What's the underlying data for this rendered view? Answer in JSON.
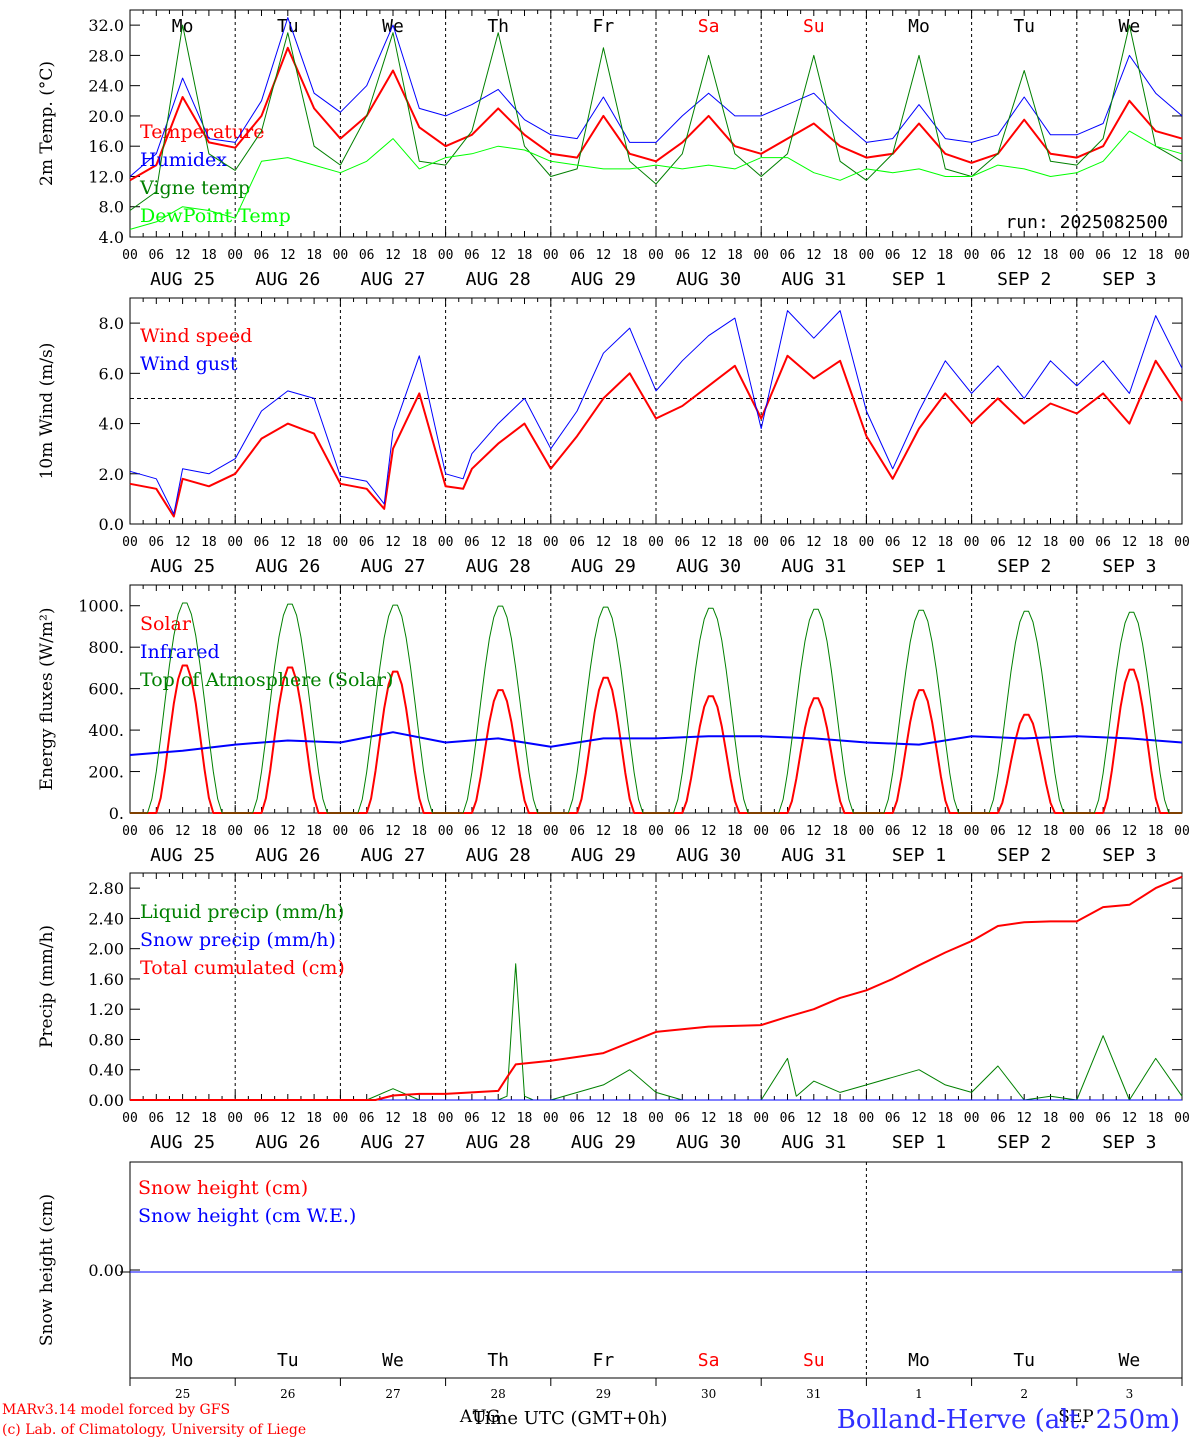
{
  "chart_data": [
    {
      "type": "line",
      "ylabel": "2m Temp. (°C)",
      "ylim": [
        4,
        34
      ],
      "yticks": [
        "4.0",
        "8.0",
        "12.0",
        "16.0",
        "20.0",
        "24.0",
        "28.0",
        "32.0"
      ],
      "weekdays": [
        "Mo",
        "Tu",
        "We",
        "Th",
        "Fr",
        "Sa",
        "Su",
        "Mo",
        "Tu",
        "We"
      ],
      "weekday_colors": [
        "#000000",
        "#000000",
        "#000000",
        "#000000",
        "#000000",
        "#ff0000",
        "#ff0000",
        "#000000",
        "#000000",
        "#000000"
      ],
      "hour_ticks": [
        "00",
        "06",
        "12",
        "18"
      ],
      "day_labels": [
        "AUG 25",
        "AUG 26",
        "AUG 27",
        "AUG 28",
        "AUG 29",
        "AUG 30",
        "AUG 31",
        "SEP  1",
        "SEP  2",
        "SEP  3"
      ],
      "final_tick": "00",
      "annotation": "run: 2025082500",
      "series": [
        {
          "name": "Temperature",
          "color": "#ff0000",
          "width": 2,
          "x": [
            0,
            6,
            12,
            18,
            24,
            30,
            36,
            42,
            48,
            54,
            60,
            66,
            72,
            78,
            84,
            90,
            96,
            102,
            108,
            114,
            120,
            126,
            132,
            138,
            144,
            150,
            156,
            162,
            168,
            174,
            180,
            186,
            192,
            198,
            204,
            210,
            216,
            222,
            228,
            234,
            240
          ],
          "y": [
            11.5,
            13.5,
            22.5,
            16.5,
            15.8,
            20,
            29,
            21,
            17,
            20,
            26,
            18.5,
            16,
            17.5,
            21,
            17.5,
            15,
            14.5,
            20,
            15,
            14,
            16.5,
            20,
            16,
            15,
            17,
            19,
            16,
            14.5,
            15,
            19,
            15,
            13.8,
            15,
            19.5,
            15,
            14.5,
            16,
            22,
            18,
            17
          ]
        },
        {
          "name": "Humidex",
          "color": "#0000ff",
          "width": 1,
          "x": [
            0,
            6,
            12,
            18,
            24,
            30,
            36,
            42,
            48,
            54,
            60,
            66,
            72,
            78,
            84,
            90,
            96,
            102,
            108,
            114,
            120,
            126,
            132,
            138,
            144,
            150,
            156,
            162,
            168,
            174,
            180,
            186,
            192,
            198,
            204,
            210,
            216,
            222,
            228,
            234,
            240
          ],
          "y": [
            12,
            15,
            25,
            17,
            16.5,
            22,
            33,
            23,
            20.5,
            24,
            32,
            21,
            20,
            21.5,
            23.5,
            19.5,
            17.5,
            17,
            22.5,
            16.5,
            16.5,
            20,
            23,
            20,
            20,
            21.5,
            23,
            19.5,
            16.5,
            17,
            21.5,
            17,
            16.5,
            17.5,
            22.5,
            17.5,
            17.5,
            19,
            28,
            23,
            20
          ]
        },
        {
          "name": "Vigne temp",
          "color": "#008000",
          "width": 1,
          "x": [
            0,
            6,
            12,
            18,
            24,
            30,
            36,
            42,
            48,
            54,
            60,
            66,
            72,
            78,
            84,
            90,
            96,
            102,
            108,
            114,
            120,
            126,
            132,
            138,
            144,
            150,
            156,
            162,
            168,
            174,
            180,
            186,
            192,
            198,
            204,
            210,
            216,
            222,
            228,
            234,
            240
          ],
          "y": [
            7.5,
            10,
            32,
            15,
            12.8,
            18,
            31,
            16,
            13.5,
            20,
            31,
            14,
            13.5,
            18,
            31,
            16,
            12,
            13,
            29,
            14,
            11,
            15,
            28,
            15,
            12,
            15,
            28,
            14,
            11.5,
            15,
            28,
            13,
            12,
            15,
            26,
            14,
            13.5,
            17,
            32,
            16,
            14
          ]
        },
        {
          "name": "DewPoint Temp",
          "color": "#00ff00",
          "width": 1,
          "x": [
            0,
            6,
            12,
            18,
            24,
            30,
            36,
            42,
            48,
            54,
            60,
            66,
            72,
            78,
            84,
            90,
            96,
            102,
            108,
            114,
            120,
            126,
            132,
            138,
            144,
            150,
            156,
            162,
            168,
            174,
            180,
            186,
            192,
            198,
            204,
            210,
            216,
            222,
            228,
            234,
            240
          ],
          "y": [
            5,
            6,
            8,
            7.5,
            6.5,
            14,
            14.5,
            13.5,
            12.5,
            14,
            17,
            13,
            14.5,
            15,
            16,
            15.5,
            14,
            13.5,
            13,
            13,
            13.5,
            13,
            13.5,
            13,
            14.5,
            14.5,
            12.5,
            11.5,
            13,
            12.5,
            13,
            12,
            12,
            13.5,
            13,
            12,
            12.5,
            14,
            18,
            16,
            15
          ]
        }
      ]
    },
    {
      "type": "line",
      "ylabel": "10m Wind (m/s)",
      "ylim": [
        0,
        9
      ],
      "yticks": [
        "0.0",
        "2.0",
        "4.0",
        "6.0",
        "8.0"
      ],
      "reference_line": 5,
      "hour_ticks": [
        "00",
        "06",
        "12",
        "18"
      ],
      "day_labels": [
        "AUG 25",
        "AUG 26",
        "AUG 27",
        "AUG 28",
        "AUG 29",
        "AUG 30",
        "AUG 31",
        "SEP  1",
        "SEP  2",
        "SEP  3"
      ],
      "final_tick": "00",
      "series": [
        {
          "name": "Wind speed",
          "color": "#ff0000",
          "width": 2,
          "x": [
            0,
            6,
            10,
            12,
            18,
            24,
            30,
            36,
            42,
            48,
            54,
            58,
            60,
            66,
            72,
            76,
            78,
            84,
            90,
            96,
            102,
            108,
            114,
            120,
            126,
            132,
            138,
            144,
            150,
            156,
            162,
            168,
            174,
            180,
            186,
            192,
            198,
            204,
            210,
            216,
            222,
            228,
            234,
            240
          ],
          "y": [
            1.6,
            1.4,
            0.3,
            1.8,
            1.5,
            2.0,
            3.4,
            4.0,
            3.6,
            1.6,
            1.4,
            0.6,
            3.0,
            5.2,
            1.5,
            1.4,
            2.2,
            3.2,
            4.0,
            2.2,
            3.5,
            5.0,
            6.0,
            4.2,
            4.7,
            5.5,
            6.3,
            4.2,
            6.7,
            5.8,
            6.5,
            3.5,
            1.8,
            3.8,
            5.2,
            4.0,
            5.0,
            4.0,
            4.8,
            4.4,
            5.2,
            4.0,
            6.5,
            4.9
          ]
        },
        {
          "name": "Wind gust",
          "color": "#0000ff",
          "width": 1,
          "x": [
            0,
            6,
            10,
            12,
            18,
            24,
            30,
            36,
            42,
            48,
            54,
            58,
            60,
            66,
            72,
            76,
            78,
            84,
            90,
            96,
            102,
            108,
            114,
            120,
            126,
            132,
            138,
            144,
            150,
            156,
            162,
            168,
            174,
            180,
            186,
            192,
            198,
            204,
            210,
            216,
            222,
            228,
            234,
            240
          ],
          "y": [
            2.1,
            1.8,
            0.4,
            2.2,
            2.0,
            2.6,
            4.5,
            5.3,
            5.0,
            1.9,
            1.7,
            0.8,
            3.7,
            6.7,
            2.0,
            1.8,
            2.8,
            4.0,
            5.0,
            3.0,
            4.5,
            6.8,
            7.8,
            5.3,
            6.5,
            7.5,
            8.2,
            3.8,
            8.5,
            7.4,
            8.5,
            4.5,
            2.2,
            4.5,
            6.5,
            5.2,
            6.3,
            5.0,
            6.5,
            5.5,
            6.5,
            5.2,
            8.3,
            6.2
          ]
        }
      ]
    },
    {
      "type": "line",
      "ylabel": "Energy fluxes (W/m²)",
      "ylim": [
        0,
        1100
      ],
      "yticks": [
        "0.",
        "200.",
        "400.",
        "600.",
        "800.",
        "1000."
      ],
      "hour_ticks": [
        "00",
        "06",
        "12",
        "18"
      ],
      "day_labels": [
        "AUG 25",
        "AUG 26",
        "AUG 27",
        "AUG 28",
        "AUG 29",
        "AUG 30",
        "AUG 31",
        "SEP  1",
        "SEP  2",
        "SEP  3"
      ],
      "final_tick": "00",
      "series": [
        {
          "name": "Solar",
          "color": "#ff0000",
          "width": 2,
          "daily_peaks": [
            720,
            710,
            690,
            600,
            660,
            570,
            560,
            600,
            480,
            700
          ]
        },
        {
          "name": "Infrared",
          "color": "#0000ff",
          "width": 2,
          "x": [
            0,
            12,
            24,
            36,
            48,
            60,
            72,
            84,
            96,
            108,
            120,
            132,
            144,
            156,
            168,
            180,
            192,
            204,
            216,
            228,
            240
          ],
          "y": [
            280,
            300,
            330,
            350,
            340,
            390,
            340,
            360,
            320,
            360,
            360,
            370,
            370,
            360,
            340,
            330,
            370,
            360,
            370,
            360,
            340
          ]
        },
        {
          "name": "Top of Atmosphere (Solar)",
          "color": "#008000",
          "width": 1,
          "daily_peaks": [
            1020,
            1015,
            1010,
            1005,
            1000,
            995,
            990,
            985,
            980,
            975
          ]
        }
      ]
    },
    {
      "type": "line",
      "ylabel": "Precip (mm/h)",
      "ylim": [
        0,
        3.0
      ],
      "yticks": [
        "0.00",
        "0.40",
        "0.80",
        "1.20",
        "1.60",
        "2.00",
        "2.40",
        "2.80"
      ],
      "hour_ticks": [
        "00",
        "06",
        "12",
        "18"
      ],
      "day_labels": [
        "AUG 25",
        "AUG 26",
        "AUG 27",
        "AUG 28",
        "AUG 29",
        "AUG 30",
        "AUG 31",
        "SEP  1",
        "SEP  2",
        "SEP  3"
      ],
      "final_tick": "00",
      "series": [
        {
          "name": "Liquid precip (mm/h)",
          "color": "#008000",
          "width": 1,
          "x": [
            0,
            54,
            60,
            66,
            72,
            84,
            86,
            88,
            90,
            92,
            96,
            108,
            114,
            120,
            126,
            132,
            144,
            150,
            152,
            156,
            162,
            168,
            174,
            180,
            186,
            192,
            198,
            204,
            210,
            216,
            222,
            228,
            234,
            240
          ],
          "y": [
            0,
            0,
            0.15,
            0,
            0,
            0,
            0.05,
            1.8,
            0.05,
            0,
            0,
            0.2,
            0.4,
            0.1,
            0,
            0,
            0,
            0.55,
            0.05,
            0.25,
            0.1,
            0.2,
            0.3,
            0.4,
            0.2,
            0.1,
            0.45,
            0,
            0.05,
            0,
            0.85,
            0,
            0.55,
            0.05
          ]
        },
        {
          "name": "Snow precip (mm/h)",
          "color": "#0000ff",
          "width": 1,
          "x": [
            0,
            240
          ],
          "y": [
            0,
            0
          ]
        },
        {
          "name": "Total cumulated (cm)",
          "color": "#ff0000",
          "width": 2,
          "x": [
            0,
            56,
            60,
            66,
            72,
            84,
            86,
            88,
            96,
            108,
            120,
            132,
            144,
            150,
            156,
            162,
            168,
            174,
            180,
            186,
            192,
            198,
            204,
            210,
            216,
            222,
            228,
            234,
            240
          ],
          "y": [
            0,
            0,
            0.06,
            0.08,
            0.08,
            0.12,
            0.3,
            0.47,
            0.52,
            0.62,
            0.9,
            0.97,
            0.99,
            1.1,
            1.2,
            1.35,
            1.45,
            1.6,
            1.78,
            1.95,
            2.1,
            2.3,
            2.35,
            2.36,
            2.36,
            2.55,
            2.58,
            2.8,
            2.95
          ]
        }
      ]
    },
    {
      "type": "line",
      "ylabel": "Snow height (cm)",
      "yticks": [
        "0.00"
      ],
      "weekdays": [
        "Mo",
        "Tu",
        "We",
        "Th",
        "Fr",
        "Sa",
        "Su",
        "Mo",
        "Tu",
        "We"
      ],
      "weekday_colors": [
        "#000000",
        "#000000",
        "#000000",
        "#000000",
        "#000000",
        "#ff0000",
        "#ff0000",
        "#000000",
        "#000000",
        "#000000"
      ],
      "day_numbers": [
        "25",
        "26",
        "27",
        "28",
        "29",
        "30",
        "31",
        "1",
        "2",
        "3"
      ],
      "month_labels": [
        "AUG",
        "SEP"
      ],
      "xlabel": "Time UTC (GMT+0h)",
      "series": [
        {
          "name": "Snow height (cm)",
          "color": "#ff0000",
          "width": 1,
          "x": [
            0,
            240
          ],
          "y": [
            0,
            0
          ]
        },
        {
          "name": "Snow height (cm W.E.)",
          "color": "#0000ff",
          "width": 1,
          "x": [
            0,
            240
          ],
          "y": [
            0,
            0
          ]
        }
      ]
    }
  ],
  "footer": {
    "credit_1": "MARv3.14 model forced by GFS",
    "credit_2": "(c) Lab. of Climatology, University of Liege",
    "station": "Bolland-Herve (alt. 250m)"
  }
}
